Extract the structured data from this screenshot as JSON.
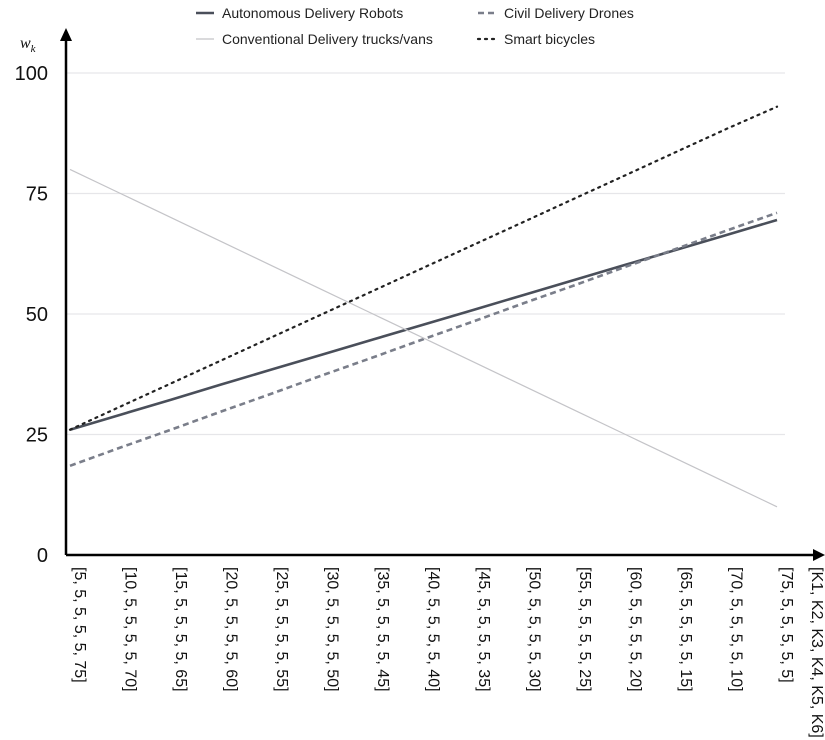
{
  "chart_data": {
    "type": "line",
    "ylabel": "w",
    "ylabel_sub": "k",
    "xlabel": "[K1, K2, K3, K4, K5, K6]",
    "ylim": [
      0,
      100
    ],
    "yticks": [
      "0",
      "25",
      "50",
      "75",
      "100"
    ],
    "grid": "horizontal",
    "legend_position": "top",
    "categories": [
      "[5, 5, 5, 5, 5, 75]",
      "[10, 5, 5, 5, 5, 70]",
      "[15, 5, 5, 5, 5, 65]",
      "[20, 5, 5, 5, 5, 60]",
      "[25, 5, 5, 5, 5, 55]",
      "[30, 5, 5, 5, 5, 50]",
      "[35, 5, 5, 5, 5, 45]",
      "[40, 5, 5, 5, 5, 40]",
      "[45, 5, 5, 5, 5, 35]",
      "[50, 5, 5, 5, 5, 30]",
      "[55, 5, 5, 5, 5, 25]",
      "[60, 5, 5, 5, 5, 20]",
      "[65, 5, 5, 5, 5, 15]",
      "[70, 5, 5, 5, 5, 10]",
      "[75, 5, 5, 5, 5, 5]"
    ],
    "series": [
      {
        "name": "Autonomous Delivery Robots",
        "style": "solid",
        "color": "#4a4f5a",
        "values": [
          26,
          29.1,
          32.2,
          35.4,
          38.5,
          41.6,
          44.7,
          47.8,
          50.9,
          54.0,
          57.1,
          60.2,
          63.3,
          66.4,
          69.5
        ]
      },
      {
        "name": "Civil Delivery Drones",
        "style": "dashed",
        "color": "#7a7e8a",
        "values": [
          18.5,
          22.3,
          26.0,
          29.8,
          33.5,
          37.3,
          41.0,
          44.8,
          48.5,
          52.3,
          56.0,
          59.8,
          63.5,
          67.3,
          71.0
        ]
      },
      {
        "name": "Conventional Delivery trucks/vans",
        "style": "solid-thin",
        "color": "#c4c4c8",
        "values": [
          80,
          75.0,
          70.0,
          65.0,
          60.0,
          55.0,
          50.0,
          45.0,
          40.0,
          35.0,
          30.0,
          25.0,
          20.0,
          15.0,
          10.0
        ]
      },
      {
        "name": "Smart bicycles",
        "style": "dotted",
        "color": "#222222",
        "values": [
          26,
          30.8,
          35.6,
          40.4,
          45.2,
          50.0,
          54.8,
          59.6,
          64.4,
          69.2,
          74.0,
          78.8,
          83.6,
          88.4,
          93.0
        ]
      }
    ]
  }
}
